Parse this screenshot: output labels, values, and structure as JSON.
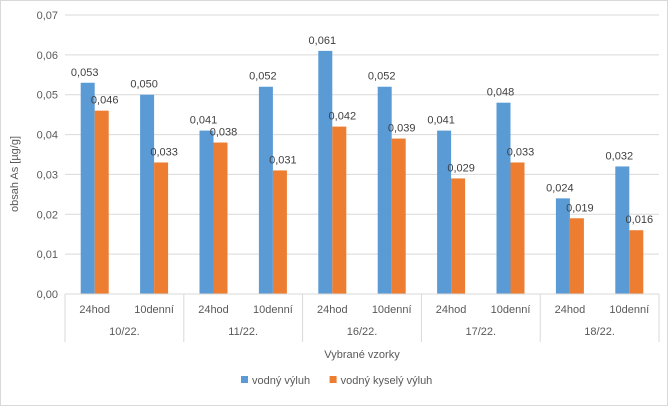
{
  "chart_data": {
    "type": "bar",
    "title": "",
    "xlabel": "Vybrané vzorky",
    "ylabel": "obsah As [µg/g]",
    "ylim": [
      0,
      0.07
    ],
    "ytick_step": 0.01,
    "yticks": [
      "0,00",
      "0,01",
      "0,02",
      "0,03",
      "0,04",
      "0,05",
      "0,06",
      "0,07"
    ],
    "grid": true,
    "legend_position": "bottom",
    "groups": [
      {
        "label": "10/22.",
        "categories": [
          "24hod",
          "10denní"
        ]
      },
      {
        "label": "11/22.",
        "categories": [
          "24hod",
          "10denní"
        ]
      },
      {
        "label": "16/22.",
        "categories": [
          "24hod",
          "10denní"
        ]
      },
      {
        "label": "17/22.",
        "categories": [
          "24hod",
          "10denní"
        ]
      },
      {
        "label": "18/22.",
        "categories": [
          "24hod",
          "10denní"
        ]
      }
    ],
    "series": [
      {
        "name": "vodný výluh",
        "color": "#5b9bd5",
        "values": [
          0.053,
          0.05,
          0.041,
          0.052,
          0.061,
          0.052,
          0.041,
          0.048,
          0.024,
          0.032
        ],
        "labels": [
          "0,053",
          "0,050",
          "0,041",
          "0,052",
          "0,061",
          "0,052",
          "0,041",
          "0,048",
          "0,024",
          "0,032"
        ]
      },
      {
        "name": "vodný kyselý výluh",
        "color": "#ed7d31",
        "values": [
          0.046,
          0.033,
          0.038,
          0.031,
          0.042,
          0.039,
          0.029,
          0.033,
          0.019,
          0.016
        ],
        "labels": [
          "0,046",
          "0,033",
          "0,038",
          "0,031",
          "0,042",
          "0,039",
          "0,029",
          "0,033",
          "0,019",
          "0,016"
        ]
      }
    ]
  }
}
